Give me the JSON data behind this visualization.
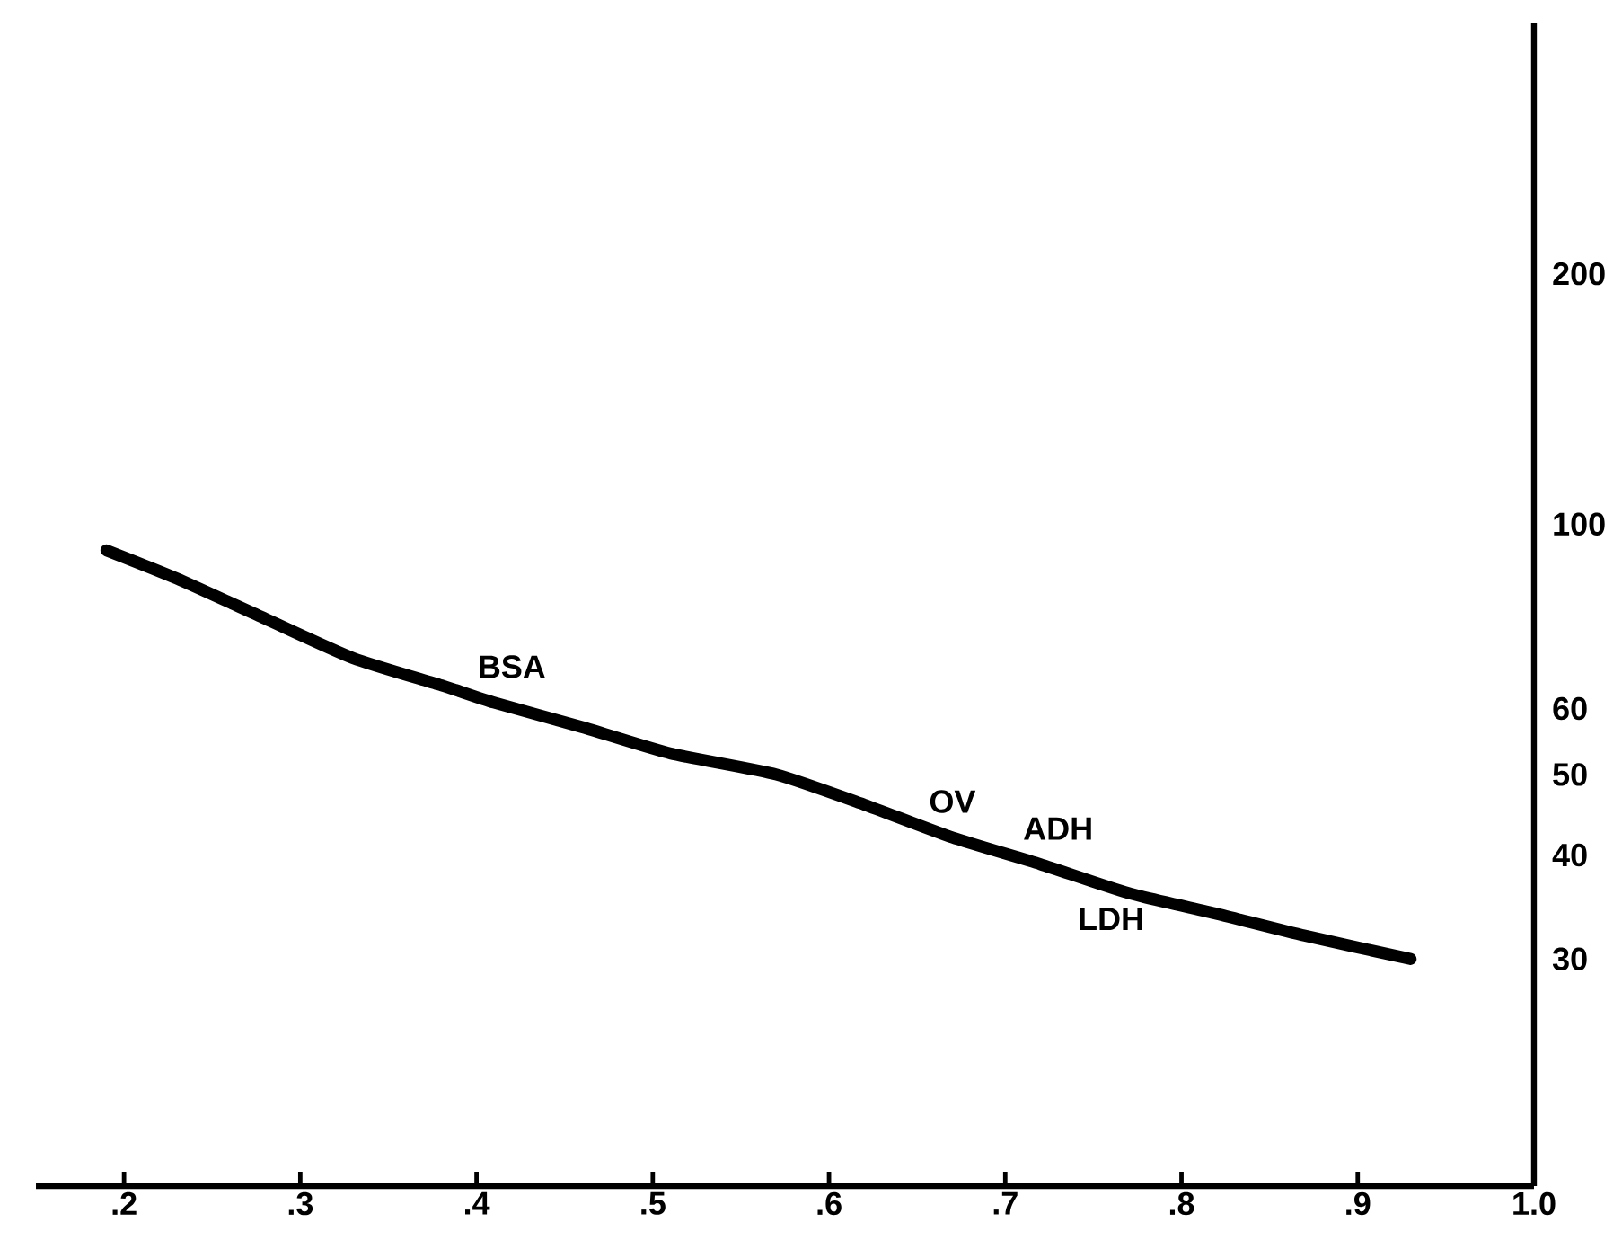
{
  "chart_data": {
    "type": "line",
    "series": [
      {
        "color": "#000000",
        "line_style": "solid",
        "x": [
          0.19,
          0.23,
          0.28,
          0.33,
          0.38,
          0.41,
          0.46,
          0.51,
          0.57,
          0.62,
          0.67,
          0.72,
          0.77,
          0.82,
          0.87,
          0.93
        ],
        "values": [
          93,
          86,
          77,
          69,
          64,
          61,
          57,
          53,
          50,
          46,
          42,
          39,
          36,
          34,
          32,
          30
        ]
      }
    ],
    "xlim": [
      0.15,
      1.0
    ],
    "xticks": [
      {
        "value": 0.2,
        "label": ".2"
      },
      {
        "value": 0.3,
        "label": ".3"
      },
      {
        "value": 0.4,
        "label": ".4"
      },
      {
        "value": 0.5,
        "label": ".5"
      },
      {
        "value": 0.6,
        "label": ".6"
      },
      {
        "value": 0.7,
        "label": ".7"
      },
      {
        "value": 0.8,
        "label": ".8"
      },
      {
        "value": 0.9,
        "label": ".9"
      },
      {
        "value": 1.0,
        "label": "1.0"
      }
    ],
    "ylim": [
      16,
      400
    ],
    "yticks": [
      30,
      40,
      50,
      60,
      100,
      200
    ],
    "log": "y",
    "annotations": [
      {
        "text": "BSA",
        "x": 0.42,
        "y": 61
      },
      {
        "text": "OV",
        "x": 0.67,
        "y": 42
      },
      {
        "text": "ADH",
        "x": 0.73,
        "y": 39
      },
      {
        "text": "LDH",
        "x": 0.76,
        "y": 37
      }
    ]
  }
}
